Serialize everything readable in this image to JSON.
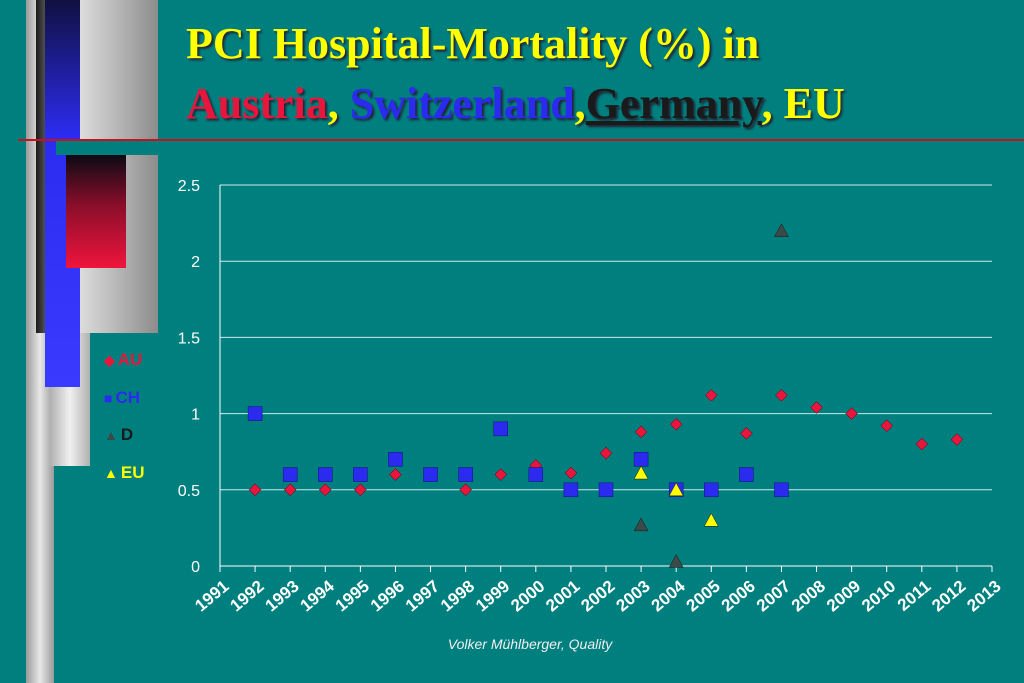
{
  "title": {
    "line1": "PCI Hospital-Mortality (%) in",
    "au": "Austria",
    "ch": "Switzerland",
    "de": "Germany",
    "eu": "EU",
    "sep1": ", ",
    "sep2": ",",
    "sep3": ", "
  },
  "footer": "Volker Mühlberger, Quality",
  "chart_data": {
    "type": "scatter",
    "title": "",
    "xlabel": "",
    "ylabel": "",
    "categories": [
      "1991",
      "1992",
      "1993",
      "1994",
      "1995",
      "1996",
      "1997",
      "1998",
      "1999",
      "2000",
      "2001",
      "2002",
      "2003",
      "2004",
      "2005",
      "2006",
      "2007",
      "2008",
      "2009",
      "2010",
      "2011",
      "2012",
      "2013"
    ],
    "ylim": [
      0,
      2.5
    ],
    "yticks": [
      "0",
      "0.5",
      "1",
      "1.5",
      "2",
      "2.5"
    ],
    "grid": true,
    "legend_position": "left",
    "series": [
      {
        "name": "AU",
        "marker": "diamond",
        "color": "#e8163c",
        "points": [
          [
            1992,
            0.5
          ],
          [
            1993,
            0.5
          ],
          [
            1994,
            0.5
          ],
          [
            1995,
            0.5
          ],
          [
            1996,
            0.6
          ],
          [
            1998,
            0.5
          ],
          [
            1999,
            0.6
          ],
          [
            2000,
            0.66
          ],
          [
            2001,
            0.61
          ],
          [
            2002,
            0.74
          ],
          [
            2003,
            0.88
          ],
          [
            2004,
            0.93
          ],
          [
            2005,
            1.12
          ],
          [
            2006,
            0.87
          ],
          [
            2007,
            1.12
          ],
          [
            2008,
            1.04
          ],
          [
            2009,
            1.0
          ],
          [
            2010,
            0.92
          ],
          [
            2011,
            0.8
          ],
          [
            2012,
            0.83
          ]
        ]
      },
      {
        "name": "CH",
        "marker": "square",
        "color": "#2b2bf0",
        "points": [
          [
            1992,
            1.0
          ],
          [
            1993,
            0.6
          ],
          [
            1994,
            0.6
          ],
          [
            1995,
            0.6
          ],
          [
            1996,
            0.7
          ],
          [
            1997,
            0.6
          ],
          [
            1998,
            0.6
          ],
          [
            1999,
            0.9
          ],
          [
            2000,
            0.6
          ],
          [
            2001,
            0.5
          ],
          [
            2002,
            0.5
          ],
          [
            2003,
            0.7
          ],
          [
            2004,
            0.5
          ],
          [
            2005,
            0.5
          ],
          [
            2006,
            0.6
          ],
          [
            2007,
            0.5
          ]
        ]
      },
      {
        "name": "D",
        "marker": "triangle",
        "color": "#3a4a48",
        "points": [
          [
            2003,
            0.27
          ],
          [
            2004,
            0.03
          ],
          [
            2007,
            2.2
          ]
        ]
      },
      {
        "name": "EU",
        "marker": "triangle",
        "color": "#ffff00",
        "points": [
          [
            2003,
            0.61
          ],
          [
            2004,
            0.5
          ],
          [
            2005,
            0.3
          ]
        ]
      }
    ]
  }
}
